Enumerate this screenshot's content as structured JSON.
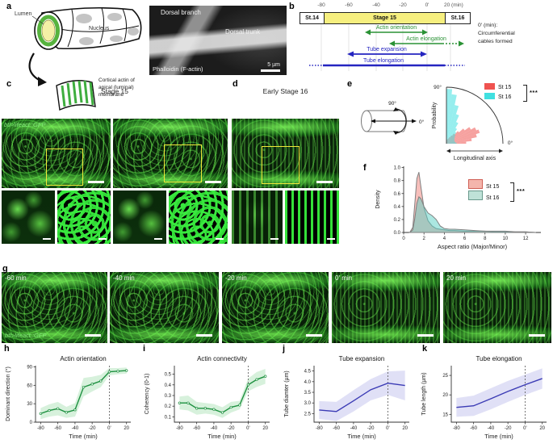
{
  "figure": {
    "panel_labels": {
      "a": "a",
      "b": "b",
      "c": "c",
      "d": "d",
      "e": "e",
      "f": "f",
      "g": "g",
      "h": "h",
      "i": "i",
      "j": "j",
      "k": "k"
    },
    "a": {
      "lumen": "Lumen",
      "nucleus": "Nucleus",
      "cortical": "Cortical actin of\napical (luminal)\nmembrane",
      "micro": {
        "branch": "Dorsal branch",
        "trunk": "Dorsal trunk",
        "stain": "Phalloidin (F-actin)",
        "scale": "5 µm"
      }
    },
    "b": {
      "ticks": [
        "-80",
        "-60",
        "-40",
        "-20",
        "0'",
        "20 (min)"
      ],
      "stages": [
        "St.14",
        "Stage 15",
        "St.16"
      ],
      "events": {
        "actin_orientation": "Actin orientation",
        "actin_elongation": "Actin elongation",
        "tube_expansion": "Tube expansion",
        "tube_elongation": "Tube elongation"
      },
      "note": "0' (min):\nCircumferential\ncables formed"
    },
    "c": {
      "title": "Stage 15",
      "lifeact": "btl>lifeact::GFP"
    },
    "d": {
      "title": "Early Stage 16"
    },
    "e": {
      "cyl_deg90": "90°",
      "cyl_deg0": "0°",
      "legend": [
        {
          "label": "St 15"
        },
        {
          "label": "St 16"
        }
      ],
      "sig": "***"
    },
    "f": {
      "legend": [
        {
          "label": "St 15"
        },
        {
          "label": "St 16"
        }
      ],
      "sig": "***"
    },
    "g": {
      "frames": [
        "-60 min",
        "-40 min",
        "-20 min",
        "0' min",
        "20 min"
      ],
      "lifeact": "btl>lifeact::GFP"
    }
  },
  "chart_data": [
    {
      "id": "e_polar",
      "type": "polar-histogram",
      "bin_deg": 6,
      "angle_range": [
        0,
        90
      ],
      "axis": {
        "r_label": "Probability",
        "x_label": "Longitudinal axis",
        "deg0": "0°",
        "deg90": "90°"
      },
      "series": [
        {
          "name": "St 15",
          "color": "#ef5350",
          "values": [
            0.35,
            0.45,
            0.55,
            0.62,
            0.58,
            0.5,
            0.4,
            0.3,
            0.22,
            0.17,
            0.13,
            0.1,
            0.08,
            0.07,
            0.06
          ]
        },
        {
          "name": "St 16",
          "color": "#40e0e0",
          "values": [
            0.18,
            0.16,
            0.15,
            0.15,
            0.16,
            0.17,
            0.19,
            0.22,
            0.26,
            0.32,
            0.42,
            0.55,
            0.7,
            0.88,
            0.97
          ]
        }
      ]
    },
    {
      "id": "f_density",
      "type": "area",
      "xlabel": "Aspect ratio (Major/Minor)",
      "ylabel": "Density",
      "xlim": [
        0,
        13.5
      ],
      "ylim": [
        0,
        1.02
      ],
      "xticks": [
        0,
        2,
        4,
        6,
        8,
        10,
        12
      ],
      "xtick_labels": [
        "0",
        "2",
        "4",
        "6",
        "8",
        "10",
        "12"
      ],
      "yticks": [
        0,
        0.2,
        0.4,
        0.6,
        0.8,
        1.0
      ],
      "ytick_labels": [
        "0.0",
        "0.2",
        "0.4",
        "0.6",
        "0.8",
        "1.0"
      ],
      "x": [
        0.6,
        0.9,
        1.1,
        1.3,
        1.5,
        1.7,
        2.0,
        2.4,
        2.8,
        3.2,
        3.6,
        4.0,
        4.5,
        5.0,
        6.0,
        7.0,
        8.0,
        9.0,
        10.0,
        11.0,
        12.0,
        13.0
      ],
      "series": [
        {
          "name": "St 15",
          "color": "#ef8078",
          "values": [
            0,
            0.08,
            0.45,
            0.83,
            0.93,
            0.7,
            0.38,
            0.18,
            0.1,
            0.06,
            0.05,
            0.04,
            0.03,
            0.03,
            0.02,
            0.02,
            0.02,
            0.01,
            0.01,
            0.01,
            0.01,
            0
          ]
        },
        {
          "name": "St 16",
          "color": "#57cfc4",
          "values": [
            0,
            0.04,
            0.22,
            0.45,
            0.55,
            0.52,
            0.4,
            0.3,
            0.26,
            0.2,
            0.1,
            0.06,
            0.05,
            0.05,
            0.04,
            0.03,
            0.02,
            0.02,
            0.02,
            0.01,
            0.01,
            0
          ]
        }
      ]
    },
    {
      "id": "h",
      "type": "line",
      "title": "Actin orientation",
      "xlabel": "Time (min)",
      "ylabel": "Dominant direction (°)",
      "color": "#1e9140",
      "band_color": "rgba(110,205,130,0.28)",
      "markers": true,
      "vline": 0,
      "xlim": [
        -86,
        25
      ],
      "ylim": [
        0,
        92
      ],
      "xticks": [
        -80,
        -60,
        -40,
        -20,
        0,
        20
      ],
      "xtick_labels": [
        "-80",
        "-60",
        "-40",
        "-20",
        "0'",
        "20"
      ],
      "yticks": [
        0,
        30,
        60,
        90
      ],
      "ytick_labels": [
        "0",
        "30",
        "60",
        "90"
      ],
      "x": [
        -80,
        -70,
        -60,
        -50,
        -40,
        -30,
        -20,
        -10,
        0,
        10,
        20
      ],
      "y": [
        14,
        19,
        22,
        16,
        20,
        57,
        62,
        67,
        82,
        83,
        84
      ],
      "band": [
        9,
        10,
        11,
        9,
        11,
        15,
        12,
        10,
        6,
        5,
        5
      ]
    },
    {
      "id": "i",
      "type": "line",
      "title": "Actin connectivity",
      "xlabel": "Time (min)",
      "ylabel": "Coherency (0-1)",
      "color": "#1e9140",
      "band_color": "rgba(110,205,130,0.28)",
      "markers": true,
      "vline": 0,
      "xlim": [
        -86,
        25
      ],
      "ylim": [
        0.05,
        0.58
      ],
      "xticks": [
        -80,
        -60,
        -40,
        -20,
        0,
        20
      ],
      "xtick_labels": [
        "-80",
        "-60",
        "-40",
        "-20",
        "0'",
        "20"
      ],
      "yticks": [
        0.1,
        0.2,
        0.3,
        0.4,
        0.5
      ],
      "ytick_labels": [
        "0.1",
        "0.2",
        "0.3",
        "0.4",
        "0.5"
      ],
      "x": [
        -80,
        -70,
        -60,
        -50,
        -40,
        -30,
        -20,
        -10,
        0,
        10,
        20
      ],
      "y": [
        0.23,
        0.23,
        0.18,
        0.18,
        0.17,
        0.14,
        0.19,
        0.21,
        0.4,
        0.45,
        0.48
      ],
      "band": [
        0.06,
        0.07,
        0.06,
        0.05,
        0.05,
        0.05,
        0.05,
        0.04,
        0.06,
        0.07,
        0.07
      ]
    },
    {
      "id": "j",
      "type": "line",
      "title": "Tube expansion",
      "xlabel": "Time (min)",
      "ylabel": "Tube diamter (µm)",
      "color": "#3b3bb5",
      "band_color": "rgba(130,130,220,0.25)",
      "markers": false,
      "vline": 0,
      "xlim": [
        -86,
        25
      ],
      "ylim": [
        2.1,
        4.75
      ],
      "xticks": [
        -80,
        -60,
        -40,
        -20,
        0,
        20
      ],
      "xtick_labels": [
        "-80",
        "-60",
        "-40",
        "-20",
        "0'",
        "20"
      ],
      "yticks": [
        2.5,
        3.0,
        3.5,
        4.0,
        4.5
      ],
      "ytick_labels": [
        "2.5",
        "3.0",
        "3.5",
        "4.0",
        "4.5"
      ],
      "x": [
        -80,
        -60,
        -40,
        -20,
        0,
        20
      ],
      "y": [
        2.67,
        2.6,
        3.1,
        3.62,
        3.93,
        3.82
      ],
      "band": [
        0.42,
        0.45,
        0.5,
        0.5,
        0.55,
        0.7
      ]
    },
    {
      "id": "k",
      "type": "line",
      "title": "Tube elongation",
      "xlabel": "Time (min)",
      "ylabel": "Tube length (µm)",
      "color": "#3b3bb5",
      "band_color": "rgba(130,130,220,0.25)",
      "markers": false,
      "vline": 0,
      "xlim": [
        -86,
        25
      ],
      "ylim": [
        13,
        27.5
      ],
      "xticks": [
        -80,
        -60,
        -40,
        -20,
        0,
        20
      ],
      "xtick_labels": [
        "-80",
        "-60",
        "-40",
        "-20",
        "0'",
        "20"
      ],
      "yticks": [
        15,
        20,
        25
      ],
      "ytick_labels": [
        "15",
        "20",
        "25"
      ],
      "x": [
        -80,
        -60,
        -40,
        -20,
        0,
        20
      ],
      "y": [
        16.8,
        17.2,
        19.0,
        20.9,
        22.6,
        24.2
      ],
      "band": [
        2.4,
        2.6,
        2.7,
        2.7,
        2.6,
        2.6
      ]
    }
  ]
}
